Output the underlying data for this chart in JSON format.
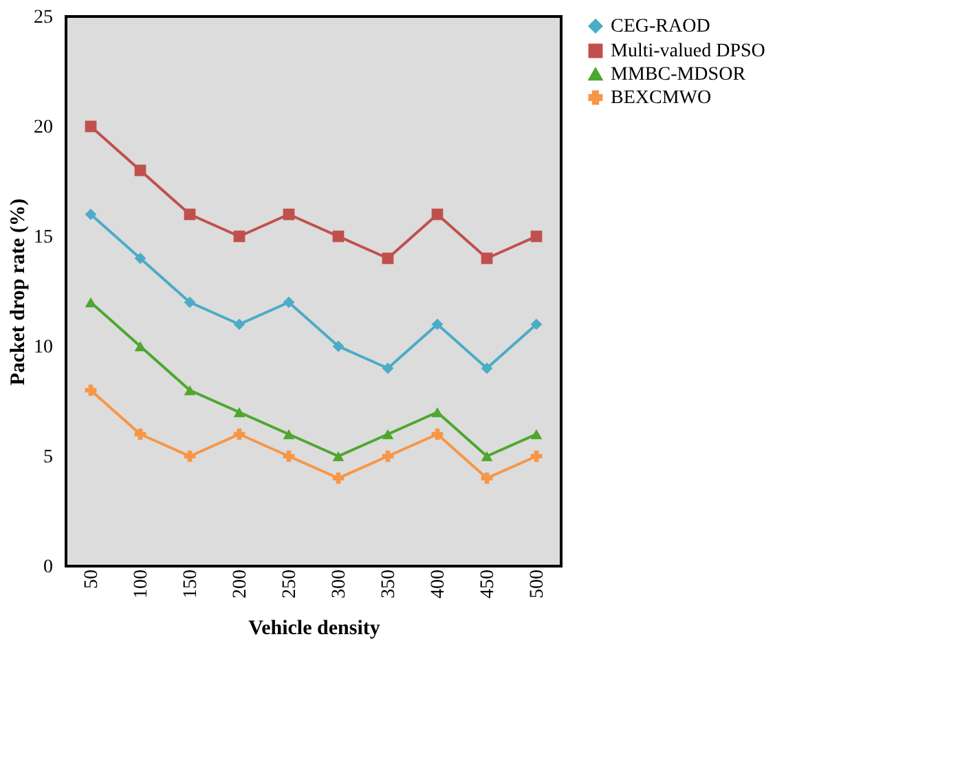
{
  "chart_data": {
    "type": "line",
    "xlabel": "Vehicle density",
    "ylabel": "Packet drop rate (%)",
    "categories": [
      "50",
      "100",
      "150",
      "200",
      "250",
      "300",
      "350",
      "400",
      "450",
      "500"
    ],
    "series": [
      {
        "name": "CEG-RAOD",
        "color": "#4bacc6",
        "marker": "diamond",
        "values": [
          16,
          14,
          12,
          11,
          12,
          10,
          9,
          11,
          9,
          11
        ]
      },
      {
        "name": "Multi-valued DPSO",
        "color": "#c0504d",
        "marker": "square",
        "values": [
          20,
          18,
          16,
          15,
          16,
          15,
          14,
          16,
          14,
          15
        ]
      },
      {
        "name": "MMBC-MDSOR",
        "color": "#4ea72e",
        "marker": "triangle",
        "values": [
          12,
          10,
          8,
          7,
          6,
          5,
          6,
          7,
          5,
          6
        ]
      },
      {
        "name": "BEXCMWO",
        "color": "#f79646",
        "marker": "cross",
        "values": [
          8,
          6,
          5,
          6,
          5,
          4,
          5,
          6,
          4,
          5
        ]
      }
    ],
    "ylim": [
      0,
      25
    ],
    "yticks": [
      0,
      5,
      10,
      15,
      20,
      25
    ],
    "grid": false,
    "legend": "right",
    "line_style": "solid"
  }
}
